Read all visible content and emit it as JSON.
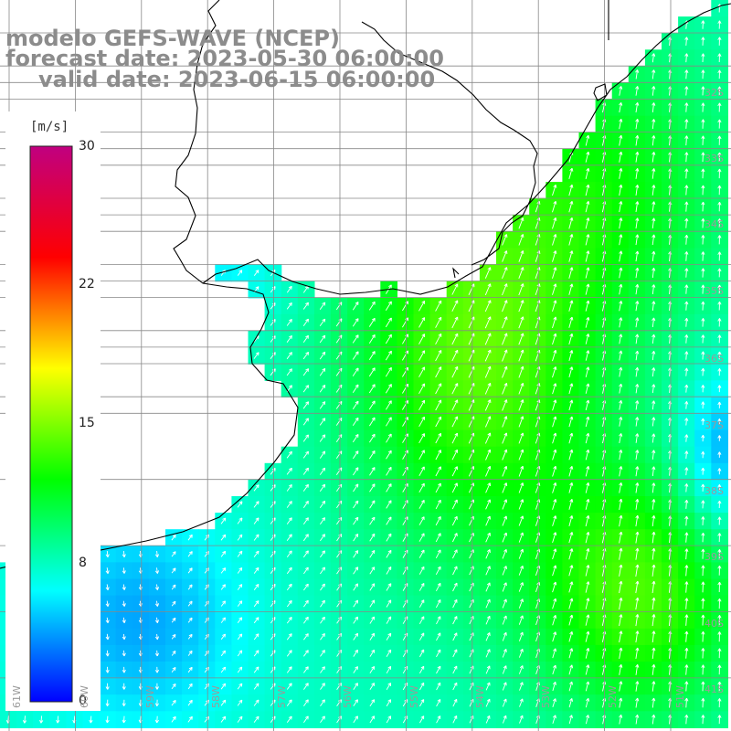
{
  "title": {
    "model": "modelo GEFS-WAVE (NCEP)",
    "forecast": "forecast date: 2023-05-30 06:00:00",
    "valid": "valid date: 2023-06-15 06:00:00"
  },
  "colorbar": {
    "unit": "[m/s]",
    "min": 0,
    "max": 30,
    "ticks": [
      {
        "value": 30,
        "label": "30"
      },
      {
        "value": 22,
        "label": "22"
      },
      {
        "value": 15,
        "label": "15"
      },
      {
        "value": 8,
        "label": "8"
      },
      {
        "value": 0,
        "label": "0"
      }
    ],
    "colors": [
      "#0000ff",
      "#00ffff",
      "#00ff00",
      "#ffff00",
      "#ff0000",
      "#c00080"
    ]
  },
  "axes": {
    "lat_labels": [
      "32S",
      "33S",
      "34S",
      "35S",
      "36S",
      "37S",
      "38S",
      "39S",
      "40S",
      "41S"
    ],
    "lon_labels": [
      "61W",
      "60W",
      "59W",
      "58W",
      "57W",
      "56W",
      "55W",
      "54W",
      "53W",
      "52W",
      "51W"
    ]
  },
  "map": {
    "land_color": "#ffffff",
    "coast_color": "#000000",
    "grid_color": "#888888",
    "arrow_color": "#ffffff"
  }
}
